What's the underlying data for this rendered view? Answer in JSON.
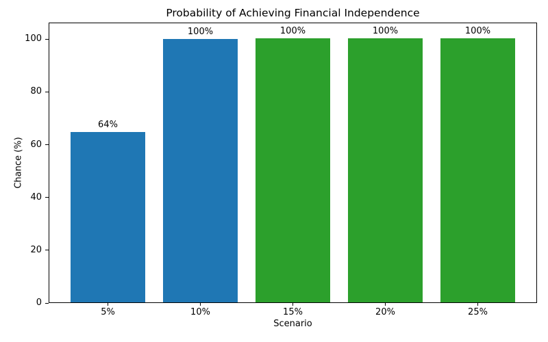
{
  "figure": {
    "background": "#ffffff",
    "text_color": "#000000",
    "spine_color": "#000000"
  },
  "chart_data": {
    "type": "bar",
    "title": "Probability of Achieving Financial Independence",
    "xlabel": "Scenario",
    "ylabel": "Chance (%)",
    "categories": [
      "5%",
      "10%",
      "15%",
      "20%",
      "25%"
    ],
    "values": [
      64.5,
      99.7,
      100,
      100,
      100
    ],
    "bar_labels": [
      "64%",
      "100%",
      "100%",
      "100%",
      "100%"
    ],
    "bar_colors": [
      "#1f77b4",
      "#1f77b4",
      "#2ca02c",
      "#2ca02c",
      "#2ca02c"
    ],
    "ylim": [
      0,
      106.3
    ],
    "yticks": [
      0,
      20,
      40,
      60,
      80,
      100
    ],
    "grid": false,
    "legend_position": "none"
  }
}
